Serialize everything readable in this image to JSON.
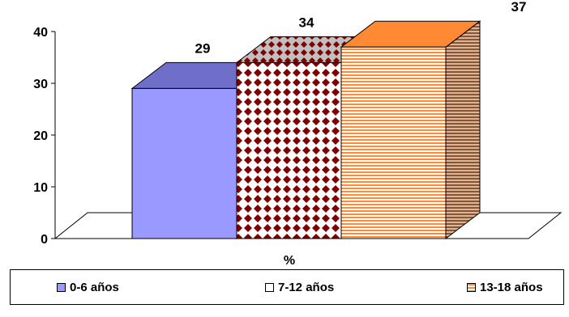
{
  "chart_data": {
    "type": "bar",
    "categories": [
      "%"
    ],
    "series": [
      {
        "name": "0-6 años",
        "values": [
          29
        ]
      },
      {
        "name": "7-12 años",
        "values": [
          34
        ]
      },
      {
        "name": "13-18 años",
        "values": [
          37
        ]
      }
    ],
    "data_labels": [
      "29",
      "34",
      "37"
    ],
    "xlabel": "%",
    "ylabel": "",
    "ylim": [
      0,
      40
    ],
    "yticks": [
      0,
      10,
      20,
      30,
      40
    ],
    "legend_position": "bottom",
    "colors": {
      "series_0_front": "#9999ff",
      "series_0_top": "#6f6fc9",
      "series_1_pattern_a": "#800000",
      "series_1_pattern_b": "#ffffff",
      "series_2_stripe_a": "#ff8a33",
      "series_2_stripe_b": "#ffffff",
      "series_2_side": "#9a6040"
    }
  }
}
